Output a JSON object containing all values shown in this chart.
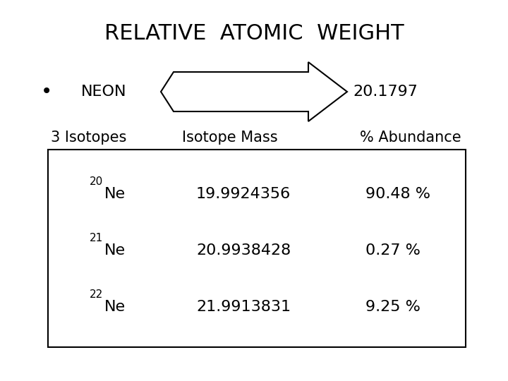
{
  "title": "RELATIVE  ATOMIC  WEIGHT",
  "element": "NEON",
  "atomic_weight": "20.1797",
  "n_isotopes": "3 Isotopes",
  "col_headers": [
    "Isotope Mass",
    "% Abundance"
  ],
  "isotopes": [
    {
      "symbol_super": "20",
      "symbol_base": "Ne",
      "mass": "19.9924356",
      "abundance": "90.48 %"
    },
    {
      "symbol_super": "21",
      "symbol_base": "Ne",
      "mass": "20.9938428",
      "abundance": "0.27 %"
    },
    {
      "symbol_super": "22",
      "symbol_base": "Ne",
      "mass": "21.9913831",
      "abundance": "9.25 %"
    }
  ],
  "bg_color": "#ffffff",
  "text_color": "#000000",
  "title_fontsize": 22,
  "body_fontsize": 16,
  "header_fontsize": 15,
  "super_fontsize": 11
}
